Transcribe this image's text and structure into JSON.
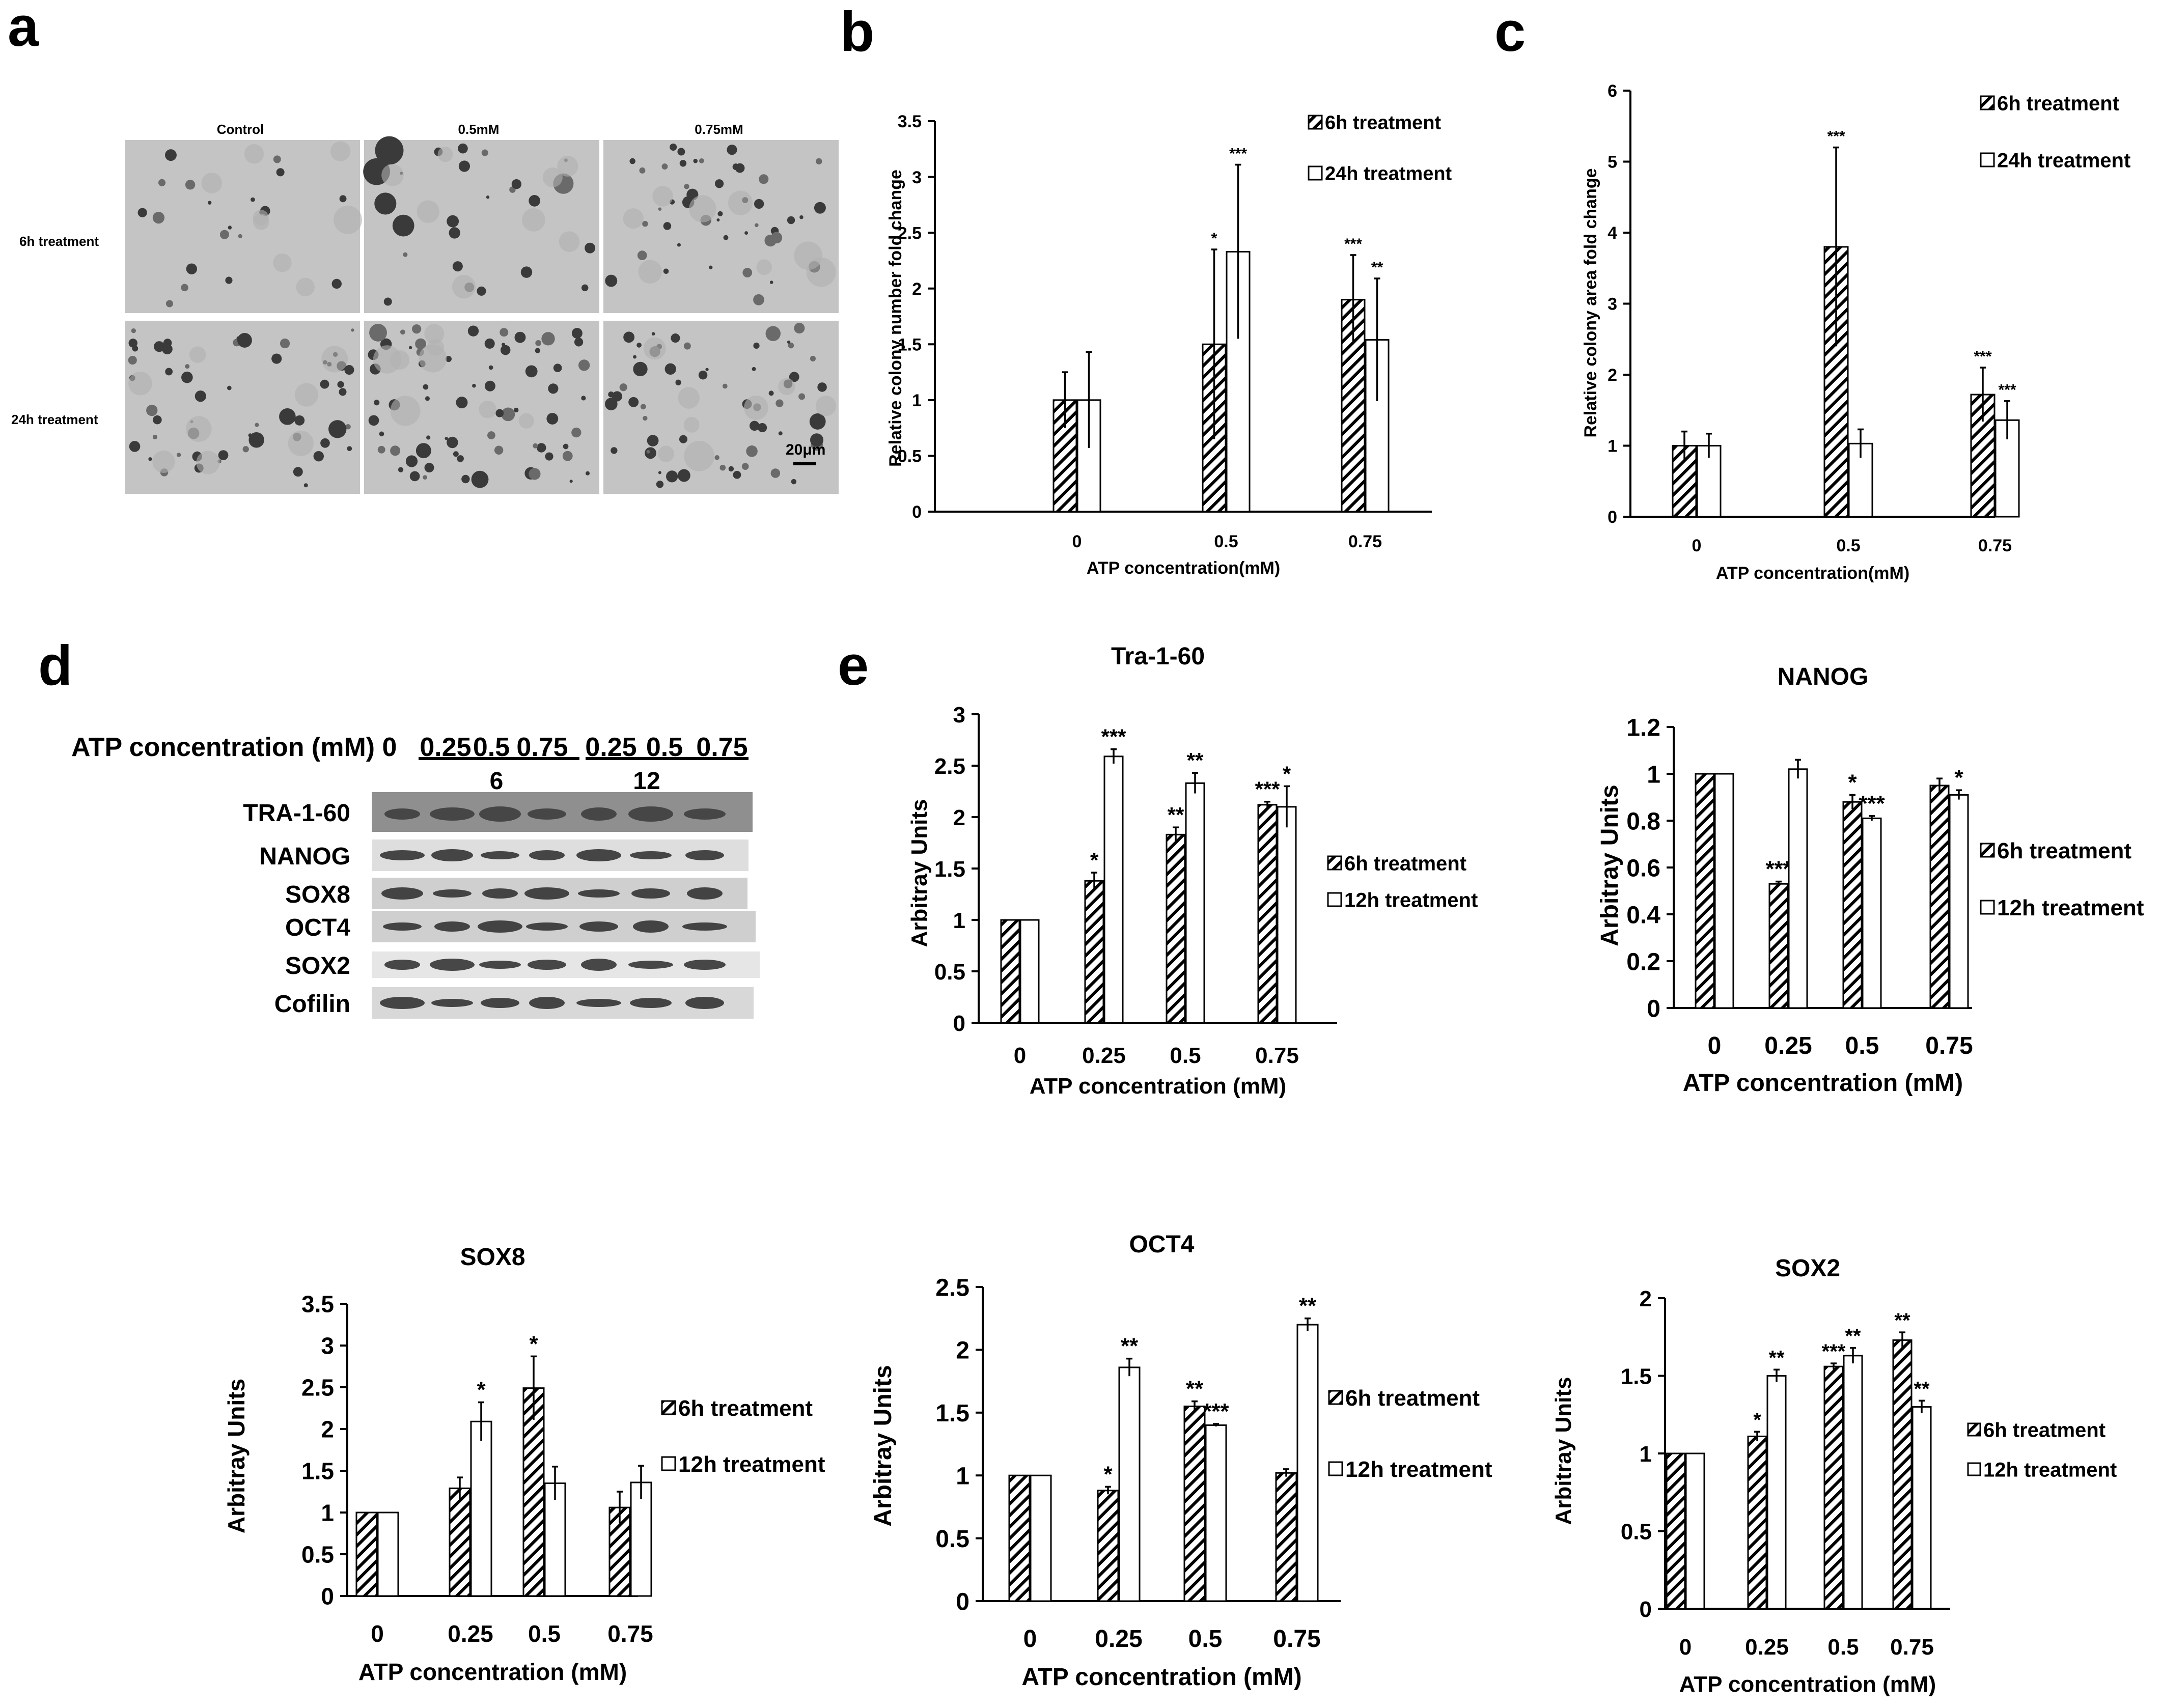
{
  "panel_letters": {
    "a": "a",
    "b": "b",
    "c": "c",
    "d": "d",
    "e": "e"
  },
  "panel_a": {
    "columns": [
      "Control",
      "0.5mM",
      "0.75mM"
    ],
    "rows": [
      "6h treatment",
      "24h treatment"
    ],
    "scale_bar": "20μm"
  },
  "panel_d": {
    "row_label": "ATP concentration (mM)",
    "concentrations": [
      "0",
      "0.25",
      "0.5",
      "0.75",
      "0.25",
      "0.5",
      "0.75"
    ],
    "time_labels": [
      "6",
      "12"
    ],
    "proteins": [
      "TRA-1-60",
      "NANOG",
      "SOX8",
      "OCT4",
      "SOX2",
      "Cofilin"
    ]
  },
  "colors": {
    "bar_hatch": "#000000",
    "bar_open": "#ffffff",
    "axis": "#000000"
  },
  "chart_data": [
    {
      "id": "b",
      "type": "bar",
      "title": "",
      "xlabel": "ATP concentration(mM)",
      "ylabel": "Relative colony number fold change",
      "categories": [
        "0",
        "0.5",
        "0.75"
      ],
      "ylim": [
        0,
        3.5
      ],
      "yticks": [
        "0",
        "0.5",
        "1",
        "1.5",
        "2",
        "2.5",
        "3",
        "3.5"
      ],
      "series": [
        {
          "name": "6h treatment",
          "values": [
            1.0,
            1.5,
            1.9
          ],
          "errors": [
            0.25,
            0.85,
            0.4
          ],
          "sig": [
            "",
            "*",
            "***"
          ]
        },
        {
          "name": "24h treatment",
          "values": [
            1.0,
            2.33,
            1.54
          ],
          "errors": [
            0.43,
            0.78,
            0.55
          ],
          "sig": [
            "",
            "***",
            "**"
          ]
        }
      ]
    },
    {
      "id": "c",
      "type": "bar",
      "title": "",
      "xlabel": "ATP concentration(mM)",
      "ylabel": "Relative colony area fold change",
      "categories": [
        "0",
        "0.5",
        "0.75"
      ],
      "ylim": [
        0,
        6
      ],
      "yticks": [
        "0",
        "1",
        "2",
        "3",
        "4",
        "5",
        "6"
      ],
      "series": [
        {
          "name": "6h treatment",
          "values": [
            1.0,
            3.8,
            1.72
          ],
          "errors": [
            0.2,
            1.4,
            0.38
          ],
          "sig": [
            "",
            "***",
            "***"
          ]
        },
        {
          "name": "24h treatment",
          "values": [
            1.0,
            1.03,
            1.36
          ],
          "errors": [
            0.17,
            0.2,
            0.27
          ],
          "sig": [
            "",
            "",
            "***"
          ]
        }
      ]
    },
    {
      "id": "e1",
      "type": "bar",
      "title": "Tra-1-60",
      "xlabel": "ATP concentration (mM)",
      "ylabel": "Arbitray Units",
      "categories": [
        "0",
        "0.25",
        "0.5",
        "0.75"
      ],
      "ylim": [
        0,
        3
      ],
      "yticks": [
        "0",
        "0.5",
        "1",
        "1.5",
        "2",
        "2.5",
        "3"
      ],
      "series": [
        {
          "name": "6h treatment",
          "values": [
            1.0,
            1.38,
            1.83,
            2.12
          ],
          "errors": [
            0,
            0.08,
            0.07,
            0.03
          ],
          "sig": [
            "",
            "*",
            "**",
            "***"
          ]
        },
        {
          "name": "12h treatment",
          "values": [
            1.0,
            2.59,
            2.33,
            2.1
          ],
          "errors": [
            0,
            0.07,
            0.1,
            0.2
          ],
          "sig": [
            "",
            "***",
            "**",
            "*"
          ]
        }
      ]
    },
    {
      "id": "e2",
      "type": "bar",
      "title": "NANOG",
      "xlabel": "ATP concentration (mM)",
      "ylabel": "Arbitray Units",
      "categories": [
        "0",
        "0.25",
        "0.5",
        "0.75"
      ],
      "ylim": [
        0,
        1.2
      ],
      "yticks": [
        "0",
        "0.2",
        "0.4",
        "0.6",
        "0.8",
        "1",
        "1.2"
      ],
      "series": [
        {
          "name": "6h treatment",
          "values": [
            1.0,
            0.53,
            0.88,
            0.95
          ],
          "errors": [
            0,
            0.01,
            0.03,
            0.03
          ],
          "sig": [
            "",
            "***",
            "*",
            ""
          ]
        },
        {
          "name": "12h treatment",
          "values": [
            1.0,
            1.02,
            0.81,
            0.91
          ],
          "errors": [
            0,
            0.04,
            0.01,
            0.02
          ],
          "sig": [
            "",
            "",
            "***",
            "*"
          ]
        }
      ]
    },
    {
      "id": "e3",
      "type": "bar",
      "title": "SOX8",
      "xlabel": "ATP concentration (mM)",
      "ylabel": "Arbitray Units",
      "categories": [
        "0",
        "0.25",
        "0.5",
        "0.75"
      ],
      "ylim": [
        0,
        3.5
      ],
      "yticks": [
        "0",
        "0.5",
        "1",
        "1.5",
        "2",
        "2.5",
        "3",
        "3.5"
      ],
      "series": [
        {
          "name": "6h treatment",
          "values": [
            1.0,
            1.29,
            2.49,
            1.06
          ],
          "errors": [
            0,
            0.13,
            0.38,
            0.19
          ],
          "sig": [
            "",
            "",
            "*",
            ""
          ]
        },
        {
          "name": "12h treatment",
          "values": [
            1.0,
            2.09,
            1.35,
            1.36
          ],
          "errors": [
            0,
            0.23,
            0.2,
            0.2
          ],
          "sig": [
            "",
            "*",
            "",
            ""
          ]
        }
      ]
    },
    {
      "id": "e4",
      "type": "bar",
      "title": "OCT4",
      "xlabel": "ATP concentration (mM)",
      "ylabel": "Arbitray Units",
      "categories": [
        "0",
        "0.25",
        "0.5",
        "0.75"
      ],
      "ylim": [
        0,
        2.5
      ],
      "yticks": [
        "0",
        "0.5",
        "1",
        "1.5",
        "2",
        "2.5"
      ],
      "series": [
        {
          "name": "6h treatment",
          "values": [
            1.0,
            0.88,
            1.55,
            1.02
          ],
          "errors": [
            0,
            0.03,
            0.04,
            0.03
          ],
          "sig": [
            "",
            "*",
            "**",
            ""
          ]
        },
        {
          "name": "12h treatment",
          "values": [
            1.0,
            1.86,
            1.4,
            2.2
          ],
          "errors": [
            0,
            0.07,
            0.01,
            0.05
          ],
          "sig": [
            "",
            "**",
            "***",
            "**"
          ]
        }
      ]
    },
    {
      "id": "e5",
      "type": "bar",
      "title": "SOX2",
      "xlabel": "ATP concentration (mM)",
      "ylabel": "Arbitray Units",
      "categories": [
        "0",
        "0.25",
        "0.5",
        "0.75"
      ],
      "ylim": [
        0,
        2
      ],
      "yticks": [
        "0",
        "0.5",
        "1",
        "1.5",
        "2"
      ],
      "series": [
        {
          "name": "6h treatment",
          "values": [
            1.0,
            1.11,
            1.56,
            1.73
          ],
          "errors": [
            0,
            0.03,
            0.02,
            0.05
          ],
          "sig": [
            "",
            "*",
            "***",
            "**"
          ]
        },
        {
          "name": "12h treatment",
          "values": [
            1.0,
            1.5,
            1.63,
            1.3
          ],
          "errors": [
            0,
            0.04,
            0.05,
            0.04
          ],
          "sig": [
            "",
            "**",
            "**",
            "**"
          ]
        }
      ]
    }
  ]
}
